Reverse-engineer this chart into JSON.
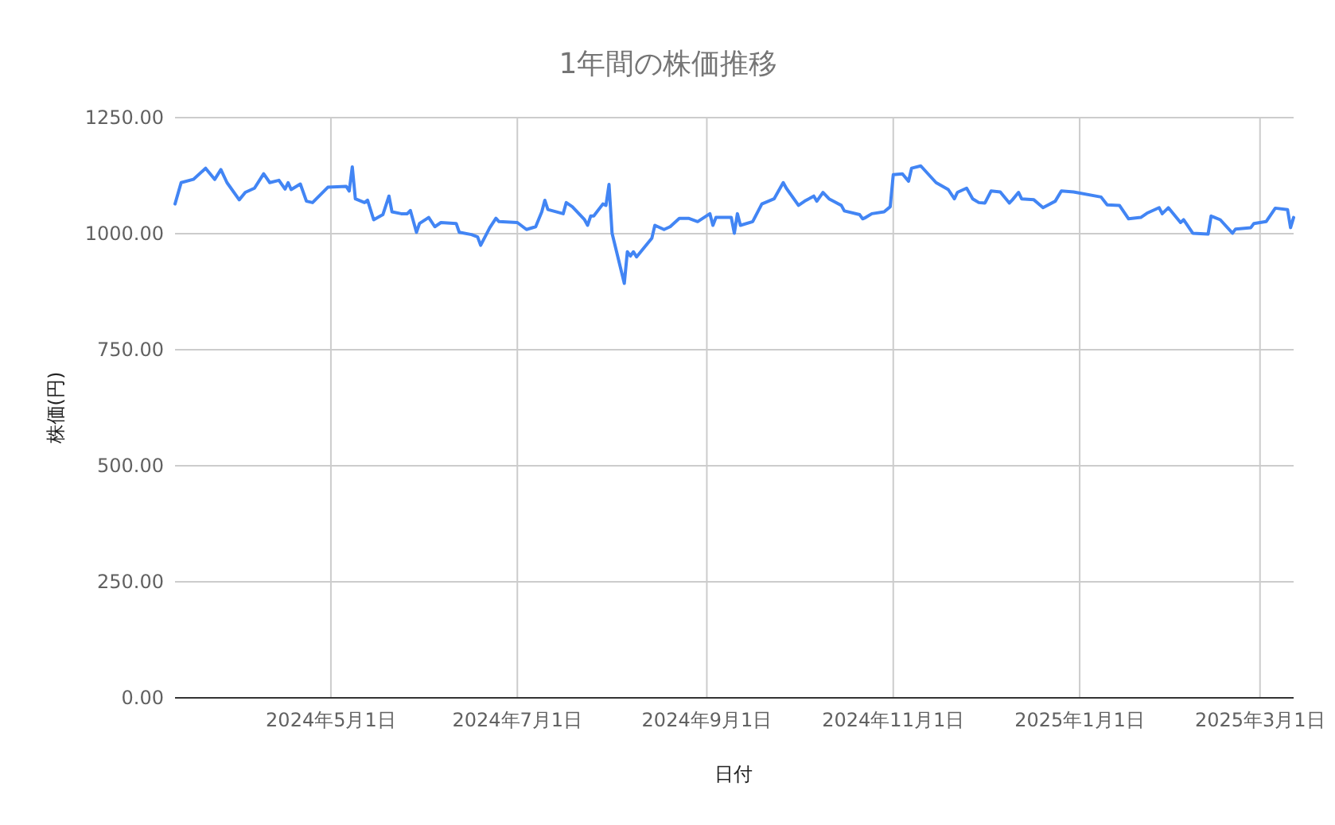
{
  "chart_data": {
    "type": "line",
    "title": "1年間の株価推移",
    "xlabel": "日付",
    "ylabel": "株価(円)",
    "grid": true,
    "marker": "none",
    "line_style": "solid",
    "xlim": [
      "2024-03-11",
      "2025-03-12"
    ],
    "xticks": [
      {
        "value": "2024-05-01",
        "label": "2024年5月1日"
      },
      {
        "value": "2024-07-01",
        "label": "2024年7月1日"
      },
      {
        "value": "2024-09-01",
        "label": "2024年9月1日"
      },
      {
        "value": "2024-11-01",
        "label": "2024年11月1日"
      },
      {
        "value": "2025-01-01",
        "label": "2025年1月1日"
      },
      {
        "value": "2025-03-01",
        "label": "2025年3月1日"
      }
    ],
    "ylim": [
      0,
      1250
    ],
    "yticks": [
      {
        "value": 0,
        "label": "0.00"
      },
      {
        "value": 250,
        "label": "250.00"
      },
      {
        "value": 500,
        "label": "500.00"
      },
      {
        "value": 750,
        "label": "750.00"
      },
      {
        "value": 1000,
        "label": "1000.00"
      },
      {
        "value": 1250,
        "label": "1250.00"
      }
    ],
    "series": [
      {
        "color": "#4285f4",
        "x": [
          "2024-03-11",
          "2024-03-13",
          "2024-03-17",
          "2024-03-21",
          "2024-03-24",
          "2024-03-26",
          "2024-03-28",
          "2024-04-01",
          "2024-04-03",
          "2024-04-06",
          "2024-04-09",
          "2024-04-11",
          "2024-04-14",
          "2024-04-16",
          "2024-04-17",
          "2024-04-18",
          "2024-04-21",
          "2024-04-23",
          "2024-04-25",
          "2024-04-30",
          "2024-05-06",
          "2024-05-07",
          "2024-05-08",
          "2024-05-09",
          "2024-05-12",
          "2024-05-13",
          "2024-05-15",
          "2024-05-18",
          "2024-05-20",
          "2024-05-21",
          "2024-05-24",
          "2024-05-26",
          "2024-05-27",
          "2024-05-29",
          "2024-05-30",
          "2024-06-02",
          "2024-06-04",
          "2024-06-06",
          "2024-06-11",
          "2024-06-12",
          "2024-06-16",
          "2024-06-18",
          "2024-06-19",
          "2024-06-22",
          "2024-06-24",
          "2024-06-25",
          "2024-07-01",
          "2024-07-04",
          "2024-07-07",
          "2024-07-09",
          "2024-07-10",
          "2024-07-11",
          "2024-07-16",
          "2024-07-17",
          "2024-07-19",
          "2024-07-23",
          "2024-07-24",
          "2024-07-25",
          "2024-07-26",
          "2024-07-29",
          "2024-07-30",
          "2024-07-31",
          "2024-08-01",
          "2024-08-05",
          "2024-08-06",
          "2024-08-07",
          "2024-08-08",
          "2024-08-09",
          "2024-08-14",
          "2024-08-15",
          "2024-08-18",
          "2024-08-20",
          "2024-08-23",
          "2024-08-26",
          "2024-08-29",
          "2024-09-02",
          "2024-09-03",
          "2024-09-04",
          "2024-09-09",
          "2024-09-10",
          "2024-09-11",
          "2024-09-12",
          "2024-09-16",
          "2024-09-19",
          "2024-09-23",
          "2024-09-26",
          "2024-09-27",
          "2024-10-01",
          "2024-10-03",
          "2024-10-06",
          "2024-10-07",
          "2024-10-09",
          "2024-10-11",
          "2024-10-15",
          "2024-10-16",
          "2024-10-21",
          "2024-10-22",
          "2024-10-23",
          "2024-10-25",
          "2024-10-29",
          "2024-10-31",
          "2024-11-01",
          "2024-11-04",
          "2024-11-06",
          "2024-11-07",
          "2024-11-10",
          "2024-11-15",
          "2024-11-19",
          "2024-11-21",
          "2024-11-22",
          "2024-11-25",
          "2024-11-27",
          "2024-11-29",
          "2024-12-01",
          "2024-12-03",
          "2024-12-06",
          "2024-12-09",
          "2024-12-10",
          "2024-12-12",
          "2024-12-13",
          "2024-12-17",
          "2024-12-20",
          "2024-12-24",
          "2024-12-26",
          "2024-12-30",
          "2025-01-08",
          "2025-01-10",
          "2025-01-14",
          "2025-01-17",
          "2025-01-21",
          "2025-01-23",
          "2025-01-27",
          "2025-01-28",
          "2025-01-30",
          "2025-02-03",
          "2025-02-04",
          "2025-02-07",
          "2025-02-12",
          "2025-02-13",
          "2025-02-16",
          "2025-02-20",
          "2025-02-21",
          "2025-02-26",
          "2025-02-27",
          "2025-03-03",
          "2025-03-06",
          "2025-03-10",
          "2025-03-11",
          "2025-03-12"
        ],
        "values": [
          1064,
          1110,
          1117,
          1141,
          1117,
          1138,
          1110,
          1073,
          1089,
          1098,
          1129,
          1110,
          1115,
          1096,
          1110,
          1095,
          1107,
          1070,
          1067,
          1100,
          1102,
          1092,
          1144,
          1075,
          1067,
          1072,
          1030,
          1041,
          1081,
          1047,
          1043,
          1043,
          1050,
          1003,
          1022,
          1035,
          1015,
          1024,
          1022,
          1003,
          998,
          993,
          975,
          1013,
          1033,
          1026,
          1024,
          1009,
          1015,
          1047,
          1072,
          1052,
          1043,
          1067,
          1058,
          1030,
          1018,
          1038,
          1038,
          1064,
          1061,
          1106,
          1001,
          893,
          961,
          952,
          961,
          950,
          990,
          1018,
          1009,
          1015,
          1033,
          1033,
          1026,
          1043,
          1018,
          1035,
          1035,
          1001,
          1043,
          1018,
          1026,
          1064,
          1075,
          1110,
          1098,
          1061,
          1070,
          1081,
          1070,
          1089,
          1075,
          1061,
          1049,
          1041,
          1032,
          1035,
          1043,
          1047,
          1058,
          1127,
          1129,
          1113,
          1141,
          1146,
          1110,
          1095,
          1075,
          1089,
          1098,
          1075,
          1067,
          1066,
          1092,
          1090,
          1066,
          1073,
          1089,
          1075,
          1073,
          1056,
          1070,
          1092,
          1090,
          1079,
          1062,
          1061,
          1032,
          1035,
          1044,
          1056,
          1043,
          1056,
          1024,
          1030,
          1001,
          999,
          1038,
          1030,
          1001,
          1010,
          1013,
          1022,
          1026,
          1055,
          1052,
          1013,
          1035
        ]
      }
    ]
  }
}
